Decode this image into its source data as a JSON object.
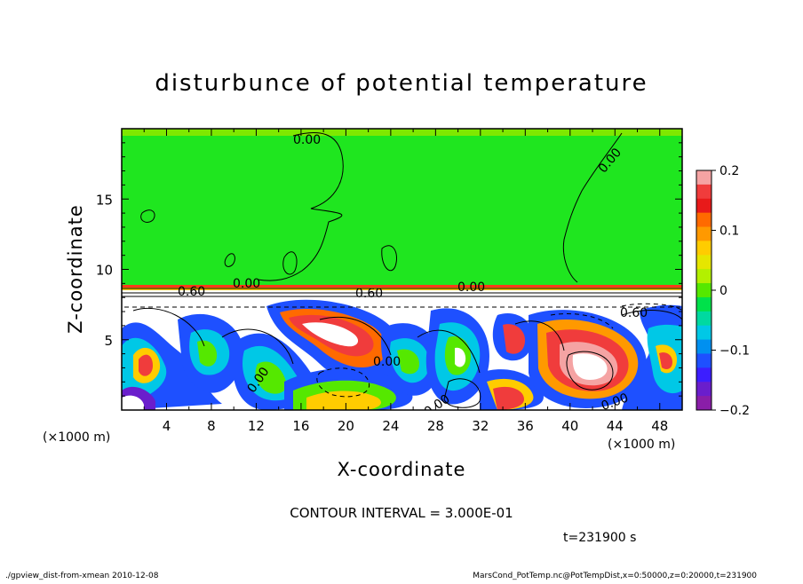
{
  "chart_data": {
    "type": "heatmap",
    "title": "disturbunce of potential temperature",
    "xlabel": "X-coordinate",
    "ylabel": "Z-coordinate",
    "x_unit_left": "(×1000 m)",
    "x_unit_right": "(×1000 m)",
    "xlim": [
      0,
      50
    ],
    "ylim": [
      0,
      20
    ],
    "xticks": [
      "4",
      "8",
      "12",
      "16",
      "20",
      "24",
      "28",
      "32",
      "36",
      "40",
      "44",
      "48"
    ],
    "yticks": [
      "5",
      "10",
      "15"
    ],
    "colorbar": {
      "range": [
        -0.2,
        0.2
      ],
      "ticks": [
        "0.2",
        "0.1",
        "0",
        "−0.1",
        "−0.2"
      ],
      "colors": [
        "#f5a3a3",
        "#f03c3c",
        "#e81a1a",
        "#ff6a00",
        "#ff9900",
        "#ffcc00",
        "#e6e600",
        "#b3f000",
        "#55e800",
        "#00e14a",
        "#00d9a0",
        "#00c8e6",
        "#0090f0",
        "#1e50ff",
        "#3c1eff",
        "#6a1ecc",
        "#8a1ea8"
      ]
    },
    "contour_labels": [
      "0.00",
      "0.00",
      "0.00",
      "0.60",
      "0.60",
      "0.60",
      "0.00",
      "0.00",
      "0.00",
      "0.00",
      "0.00"
    ],
    "contour_interval_text": "CONTOUR INTERVAL = 3.000E-01",
    "time_text": "t=231900 s"
  },
  "footer": {
    "left": "./gpview_dist-from-xmean   2010-12-08",
    "right": "MarsCond_PotTemp.nc@PotTempDist,x=0:50000,z=0:20000,t=231900"
  }
}
